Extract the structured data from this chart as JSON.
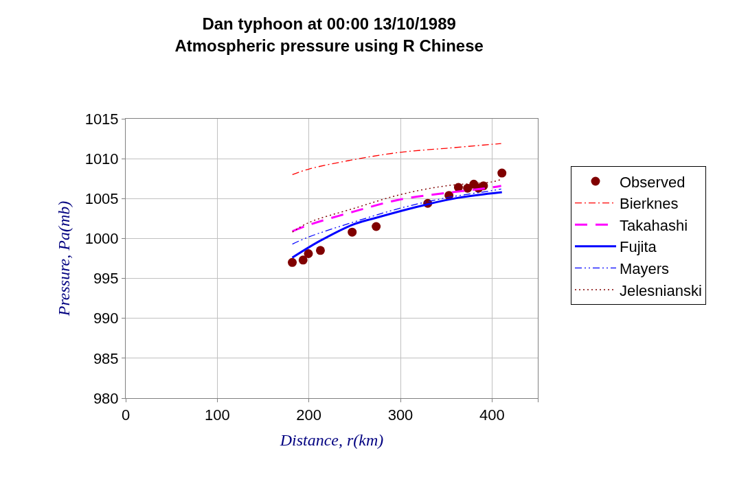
{
  "chart_data": {
    "type": "line",
    "title": "Dan typhoon at 00:00 13/10/1989",
    "subtitle": "Atmospheric pressure using R Chinese",
    "xlabel": "Distance, r(km)",
    "ylabel": "Pressure, Pa(mb)",
    "xlim": [
      0,
      450
    ],
    "xticks": [
      0,
      100,
      200,
      300,
      400,
      {
        "value": 450,
        "label": null
      }
    ],
    "ylim": [
      980,
      1015
    ],
    "yticks": [
      980,
      985,
      990,
      995,
      1000,
      1005,
      1010,
      1015
    ],
    "grid": true,
    "legend": "right",
    "series": [
      {
        "name": "Observed",
        "type": "scatter",
        "marker": "circle",
        "color": "#800000",
        "x": [
          181.9,
          193.7,
          199.5,
          212.6,
          247.3,
          273.5,
          329.8,
          353.0,
          363.3,
          373.3,
          380.1,
          385.2,
          390.7,
          410.8
        ],
        "values": [
          997.0,
          997.3,
          998.1,
          998.5,
          1000.8,
          1001.5,
          1004.4,
          1005.4,
          1006.4,
          1006.3,
          1006.8,
          1006.3,
          1006.6,
          1008.2
        ]
      },
      {
        "name": "Bierknes",
        "color": "#ff0000",
        "line_style": "dashdot",
        "x": [
          182,
          200,
          250,
          300,
          350,
          400,
          410
        ],
        "values": [
          1008.0,
          1008.7,
          1009.9,
          1010.8,
          1011.3,
          1011.8,
          1011.9
        ]
      },
      {
        "name": "Takahashi",
        "color": "#ff00ff",
        "line_style": "dashed",
        "x": [
          182,
          200,
          250,
          300,
          350,
          400,
          410
        ],
        "values": [
          1000.9,
          1001.7,
          1003.4,
          1004.9,
          1005.7,
          1006.4,
          1006.6
        ]
      },
      {
        "name": "Fujita",
        "color": "#0000ff",
        "line_style": "solid",
        "x": [
          181.9,
          212.1,
          247.3,
          273.5,
          329.8,
          363.0,
          410.8
        ],
        "values": [
          997.6,
          999.7,
          1001.7,
          1002.6,
          1004.3,
          1005.1,
          1005.8
        ]
      },
      {
        "name": "Mayers",
        "color": "#0000ff",
        "line_style": "dashdotdot",
        "x": [
          182,
          200,
          250,
          300,
          350,
          400,
          410
        ],
        "values": [
          999.3,
          1000.2,
          1002.1,
          1003.8,
          1005.1,
          1006.0,
          1006.2
        ]
      },
      {
        "name": "Jelesnianski",
        "color": "#800000",
        "line_style": "dotted",
        "x": [
          182,
          200,
          250,
          300,
          350,
          400,
          410
        ],
        "values": [
          1000.8,
          1002.0,
          1003.8,
          1005.5,
          1006.6,
          1007.1,
          1007.4
        ]
      }
    ]
  }
}
